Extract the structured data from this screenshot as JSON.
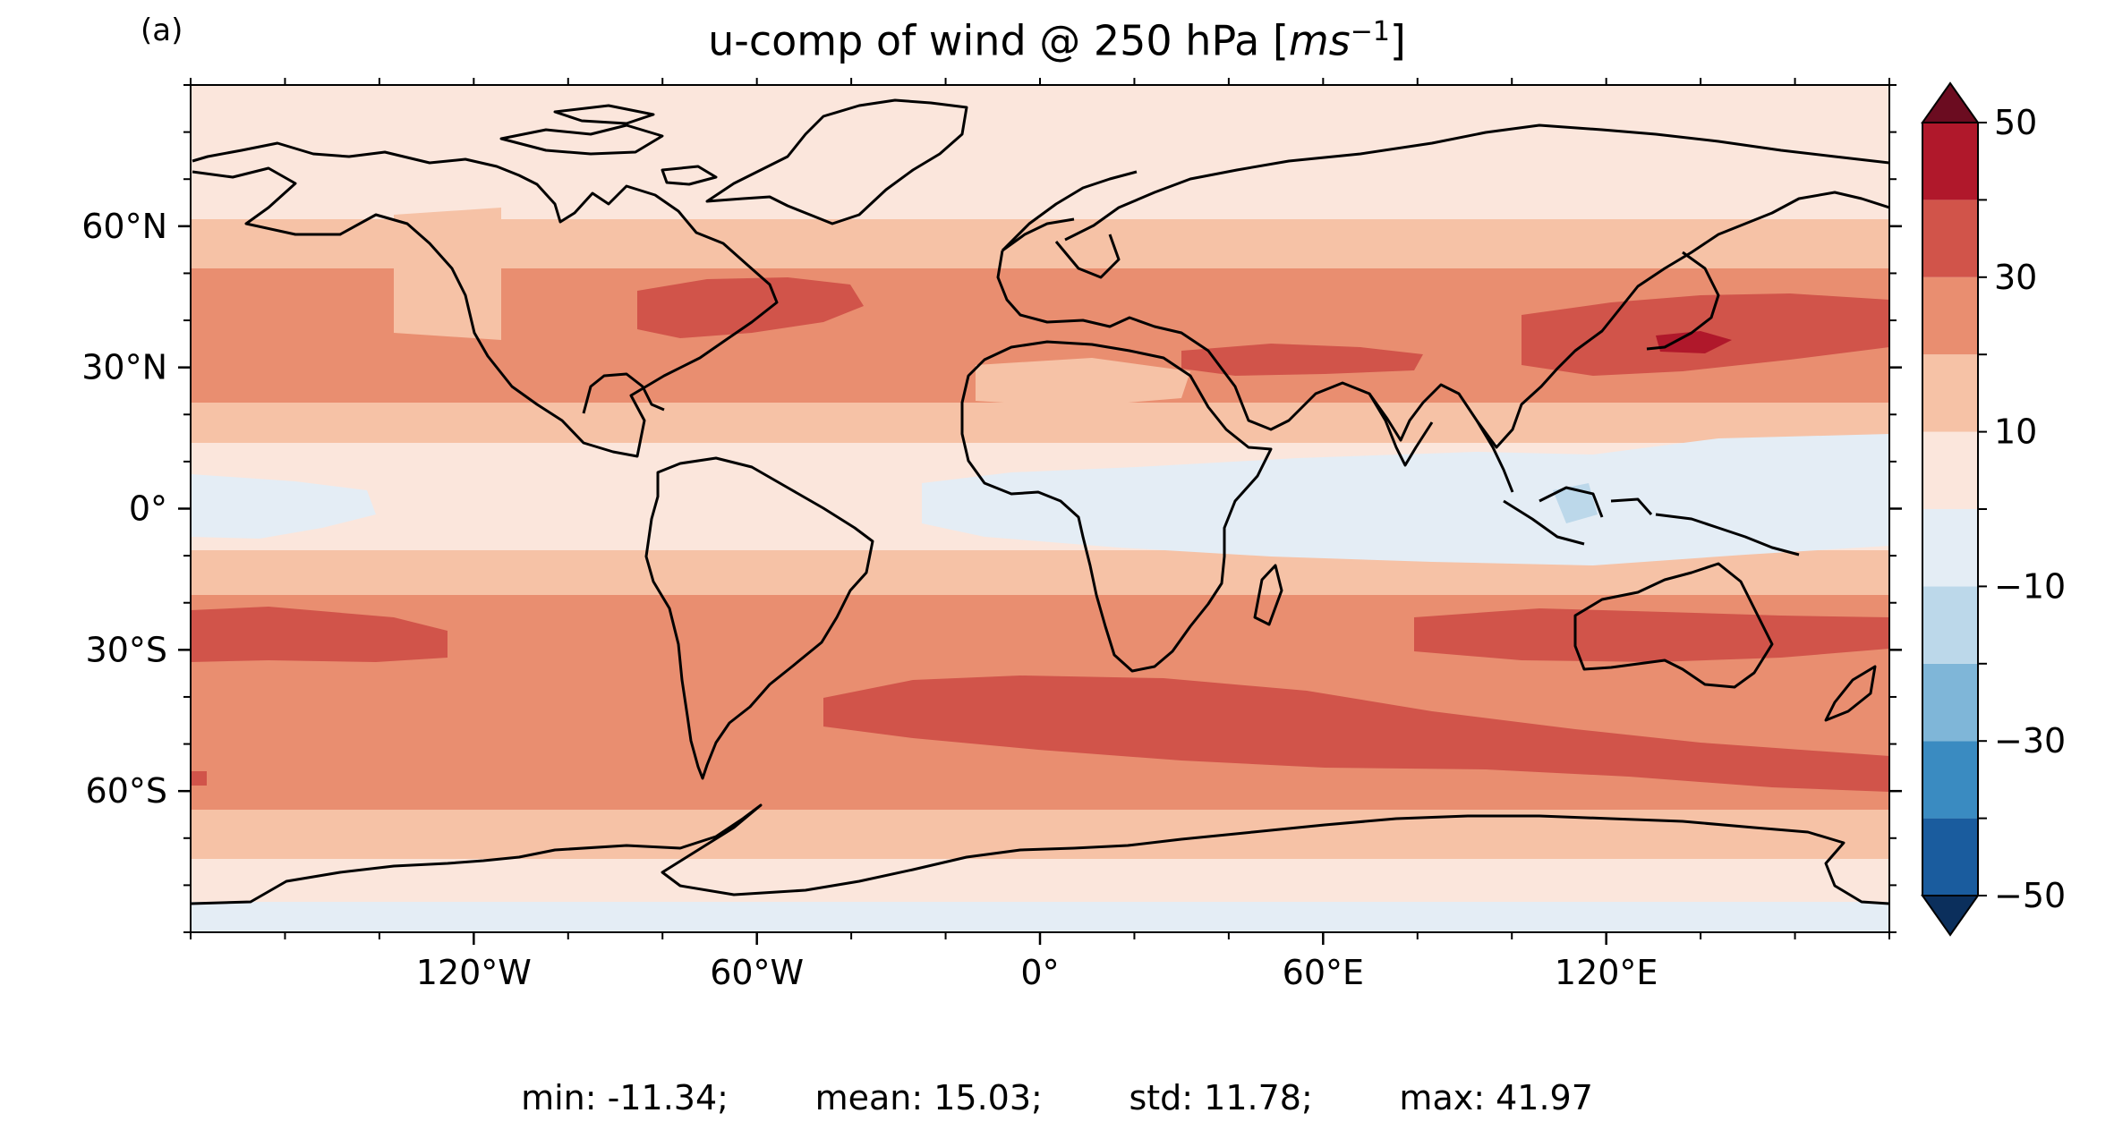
{
  "panel_label": "(a)",
  "title": {
    "text": "u-comp of wind @ 250 hPa [",
    "unit": "ms",
    "exponent": "−1",
    "close": "]"
  },
  "stats": {
    "min": "min: -11.34;",
    "mean": "mean: 15.03;",
    "std": "std: 11.78;",
    "max": "max: 41.97"
  },
  "map": {
    "projection": "PlateCarree",
    "lon_range": [
      -180,
      180
    ],
    "lat_range": [
      -90,
      90
    ],
    "lon_ticks": [
      {
        "value": -120,
        "label": "120°W"
      },
      {
        "value": -60,
        "label": "60°W"
      },
      {
        "value": 0,
        "label": "0°"
      },
      {
        "value": 60,
        "label": "60°E"
      },
      {
        "value": 120,
        "label": "120°E"
      }
    ],
    "lat_ticks": [
      {
        "value": 60,
        "label": "60°N"
      },
      {
        "value": 30,
        "label": "30°N"
      },
      {
        "value": 0,
        "label": "0°"
      },
      {
        "value": -30,
        "label": "30°S"
      },
      {
        "value": -60,
        "label": "60°S"
      }
    ],
    "coastline_color": "#000000"
  },
  "colorbar": {
    "levels": [
      -50,
      -40,
      -30,
      -20,
      -10,
      0,
      10,
      20,
      30,
      40,
      50
    ],
    "colors": [
      "#1a5c9e",
      "#3a8bc1",
      "#7fb6d8",
      "#bcd8ea",
      "#e4edf5",
      "#fbe6dc",
      "#f6c2a6",
      "#e98e70",
      "#d1544a",
      "#b0182b"
    ],
    "extend_low_color": "#0b2f5c",
    "extend_high_color": "#6b0c20",
    "tick_labels": [
      {
        "value": 50,
        "label": "50"
      },
      {
        "value": 30,
        "label": "30"
      },
      {
        "value": 10,
        "label": "10"
      },
      {
        "value": -10,
        "label": "−10"
      },
      {
        "value": -30,
        "label": "−30"
      },
      {
        "value": -50,
        "label": "−50"
      }
    ]
  }
}
